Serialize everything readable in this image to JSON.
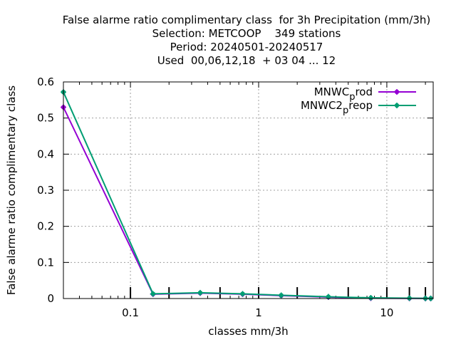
{
  "chart_data": {
    "type": "line",
    "title_lines": [
      "False alarme ratio complimentary class  for 3h Precipitation (mm/3h)",
      "Selection: METCOOP    349 stations",
      "Period: 20240501-20240517",
      "Used  00,06,12,18  + 03 04 ... 12"
    ],
    "xlabel": "classes mm/3h",
    "ylabel": "False alarme ratio complimentary class",
    "x_scale": "log",
    "xlim": [
      0.03,
      23
    ],
    "ylim": [
      0,
      0.6
    ],
    "x_ticks": [
      {
        "value": 0.1,
        "label": "0.1"
      },
      {
        "value": 1,
        "label": "1"
      },
      {
        "value": 10,
        "label": "10"
      }
    ],
    "y_ticks": [
      {
        "value": 0,
        "label": "0"
      },
      {
        "value": 0.1,
        "label": "0.1"
      },
      {
        "value": 0.2,
        "label": "0.2"
      },
      {
        "value": 0.3,
        "label": "0.3"
      },
      {
        "value": 0.4,
        "label": "0.4"
      },
      {
        "value": 0.5,
        "label": "0.5"
      },
      {
        "value": 0.6,
        "label": "0.6"
      }
    ],
    "class_markers": [
      0.1,
      0.2,
      0.5,
      1,
      2,
      5,
      10,
      15,
      20
    ],
    "grid": true,
    "legend_position": "top-right",
    "series": [
      {
        "name_main": "MNWC",
        "name_sub": "p",
        "name_rest": "rod",
        "color": "#9400d3",
        "x": [
          0.03,
          0.15,
          0.35,
          0.75,
          1.5,
          3.5,
          7.5,
          15,
          20,
          22
        ],
        "y": [
          0.53,
          0.012,
          0.015,
          0.012,
          0.008,
          0.004,
          0.001,
          0.0005,
          0.0003,
          0.0002
        ]
      },
      {
        "name_main": "MNWC2",
        "name_sub": "p",
        "name_rest": "reop",
        "color": "#009e73",
        "x": [
          0.03,
          0.15,
          0.35,
          0.75,
          1.5,
          3.5,
          7.5,
          15,
          20,
          22
        ],
        "y": [
          0.572,
          0.013,
          0.016,
          0.013,
          0.009,
          0.005,
          0.002,
          0.001,
          0.0005,
          0.0003
        ]
      }
    ]
  }
}
